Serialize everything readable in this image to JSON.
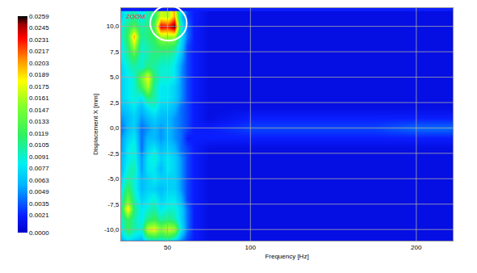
{
  "chart_data": {
    "type": "heatmap",
    "x_label": "Frequency [Hz]",
    "y_label": "Displacement X [mm]",
    "annotations": [
      "ZOOM"
    ],
    "x": [
      22,
      26,
      30,
      34,
      38,
      42,
      46,
      50,
      54,
      58,
      62,
      66,
      75,
      100,
      125,
      150,
      175,
      200,
      220
    ],
    "y": [
      -11,
      -10,
      -9,
      -8,
      -7,
      -6,
      -5,
      -4,
      -3,
      -2,
      -1,
      0,
      1,
      2,
      3,
      4,
      5,
      6,
      7,
      8,
      9,
      10,
      11
    ],
    "z": [
      [
        0.006,
        0.008,
        0.007,
        0.006,
        0.009,
        0.01,
        0.009,
        0.01,
        0.008,
        0.005,
        0.003,
        0.002,
        0.001,
        0.001,
        0.001,
        0.001,
        0.001,
        0.001,
        0.001
      ],
      [
        0.008,
        0.012,
        0.01,
        0.009,
        0.017,
        0.018,
        0.015,
        0.017,
        0.016,
        0.008,
        0.004,
        0.002,
        0.001,
        0.001,
        0.001,
        0.001,
        0.001,
        0.001,
        0.001
      ],
      [
        0.009,
        0.012,
        0.01,
        0.008,
        0.011,
        0.012,
        0.01,
        0.011,
        0.01,
        0.007,
        0.004,
        0.002,
        0.001,
        0.001,
        0.001,
        0.001,
        0.001,
        0.001,
        0.001
      ],
      [
        0.01,
        0.019,
        0.011,
        0.008,
        0.009,
        0.01,
        0.008,
        0.009,
        0.009,
        0.007,
        0.004,
        0.002,
        0.001,
        0.001,
        0.001,
        0.001,
        0.001,
        0.001,
        0.001
      ],
      [
        0.009,
        0.014,
        0.01,
        0.007,
        0.008,
        0.009,
        0.007,
        0.008,
        0.008,
        0.006,
        0.003,
        0.002,
        0.001,
        0.001,
        0.001,
        0.001,
        0.001,
        0.001,
        0.001
      ],
      [
        0.008,
        0.012,
        0.009,
        0.006,
        0.007,
        0.007,
        0.006,
        0.007,
        0.007,
        0.005,
        0.003,
        0.002,
        0.001,
        0.001,
        0.001,
        0.001,
        0.001,
        0.001,
        0.001
      ],
      [
        0.007,
        0.01,
        0.009,
        0.006,
        0.007,
        0.008,
        0.007,
        0.007,
        0.007,
        0.005,
        0.003,
        0.002,
        0.001,
        0.001,
        0.001,
        0.001,
        0.001,
        0.001,
        0.001
      ],
      [
        0.006,
        0.009,
        0.01,
        0.005,
        0.008,
        0.008,
        0.006,
        0.008,
        0.007,
        0.005,
        0.003,
        0.002,
        0.001,
        0.001,
        0.001,
        0.001,
        0.001,
        0.001,
        0.001
      ],
      [
        0.006,
        0.008,
        0.009,
        0.005,
        0.008,
        0.009,
        0.007,
        0.008,
        0.007,
        0.005,
        0.003,
        0.002,
        0.001,
        0.001,
        0.001,
        0.001,
        0.001,
        0.001,
        0.001
      ],
      [
        0.005,
        0.008,
        0.009,
        0.004,
        0.007,
        0.008,
        0.006,
        0.007,
        0.006,
        0.004,
        0.003,
        0.002,
        0.001,
        0.001,
        0.001,
        0.001,
        0.001,
        0.001,
        0.001
      ],
      [
        0.005,
        0.007,
        0.008,
        0.004,
        0.006,
        0.006,
        0.005,
        0.006,
        0.005,
        0.004,
        0.002,
        0.002,
        0.002,
        0.002,
        0.002,
        0.002,
        0.002,
        0.002,
        0.002
      ],
      [
        0.004,
        0.006,
        0.007,
        0.004,
        0.005,
        0.006,
        0.005,
        0.006,
        0.005,
        0.004,
        0.003,
        0.002,
        0.002,
        0.003,
        0.003,
        0.003,
        0.003,
        0.004,
        0.004
      ],
      [
        0.005,
        0.006,
        0.007,
        0.005,
        0.006,
        0.007,
        0.006,
        0.006,
        0.005,
        0.004,
        0.003,
        0.002,
        0.001,
        0.002,
        0.002,
        0.002,
        0.002,
        0.002,
        0.002
      ],
      [
        0.006,
        0.007,
        0.008,
        0.006,
        0.008,
        0.009,
        0.007,
        0.007,
        0.006,
        0.004,
        0.003,
        0.002,
        0.001,
        0.001,
        0.001,
        0.001,
        0.001,
        0.001,
        0.001
      ],
      [
        0.007,
        0.008,
        0.009,
        0.008,
        0.011,
        0.01,
        0.008,
        0.008,
        0.007,
        0.005,
        0.003,
        0.002,
        0.001,
        0.001,
        0.001,
        0.001,
        0.001,
        0.001,
        0.001
      ],
      [
        0.007,
        0.008,
        0.009,
        0.012,
        0.016,
        0.01,
        0.008,
        0.008,
        0.007,
        0.005,
        0.003,
        0.002,
        0.001,
        0.001,
        0.001,
        0.001,
        0.001,
        0.001,
        0.001
      ],
      [
        0.007,
        0.008,
        0.009,
        0.014,
        0.018,
        0.011,
        0.009,
        0.009,
        0.008,
        0.005,
        0.003,
        0.002,
        0.001,
        0.001,
        0.001,
        0.001,
        0.001,
        0.001,
        0.001
      ],
      [
        0.007,
        0.009,
        0.01,
        0.009,
        0.011,
        0.01,
        0.009,
        0.009,
        0.008,
        0.005,
        0.003,
        0.002,
        0.001,
        0.001,
        0.001,
        0.001,
        0.001,
        0.001,
        0.001
      ],
      [
        0.008,
        0.01,
        0.012,
        0.009,
        0.01,
        0.011,
        0.01,
        0.01,
        0.009,
        0.006,
        0.003,
        0.002,
        0.001,
        0.001,
        0.001,
        0.001,
        0.001,
        0.001,
        0.001
      ],
      [
        0.008,
        0.011,
        0.016,
        0.009,
        0.01,
        0.011,
        0.012,
        0.012,
        0.011,
        0.007,
        0.003,
        0.002,
        0.001,
        0.001,
        0.001,
        0.001,
        0.001,
        0.001,
        0.001
      ],
      [
        0.009,
        0.012,
        0.02,
        0.01,
        0.011,
        0.012,
        0.016,
        0.016,
        0.016,
        0.008,
        0.004,
        0.002,
        0.001,
        0.001,
        0.001,
        0.001,
        0.001,
        0.001,
        0.001
      ],
      [
        0.009,
        0.011,
        0.013,
        0.01,
        0.011,
        0.013,
        0.024,
        0.023,
        0.0259,
        0.009,
        0.004,
        0.002,
        0.001,
        0.001,
        0.001,
        0.001,
        0.001,
        0.001,
        0.001
      ],
      [
        0.007,
        0.009,
        0.01,
        0.008,
        0.01,
        0.011,
        0.017,
        0.016,
        0.02,
        0.007,
        0.003,
        0.002,
        0.001,
        0.001,
        0.001,
        0.001,
        0.001,
        0.001,
        0.001
      ]
    ],
    "xlim": [
      22,
      222
    ],
    "ylim": [
      -11.1,
      11.8
    ],
    "xticks": [
      50,
      100,
      200
    ],
    "yticks": [
      {
        "value": -10,
        "label": "-10,0"
      },
      {
        "value": -7.5,
        "label": "-7,5"
      },
      {
        "value": -5,
        "label": "-5,0"
      },
      {
        "value": -2.5,
        "label": "-2,5"
      },
      {
        "value": 0,
        "label": "0,0"
      },
      {
        "value": 2.5,
        "label": "2,5"
      },
      {
        "value": 5,
        "label": "5,0"
      },
      {
        "value": 7.5,
        "label": "7,5"
      },
      {
        "value": 10,
        "label": "10,0"
      }
    ],
    "colorbar": {
      "range": [
        0,
        0.0259
      ],
      "ticks": [
        {
          "value": 0,
          "label": "0.0000"
        },
        0.0021,
        0.0035,
        0.0049,
        0.0063,
        0.0077,
        0.0091,
        0.0105,
        0.0119,
        0.0133,
        0.0147,
        0.0161,
        0.0175,
        0.0189,
        0.0203,
        0.0217,
        0.0231,
        0.0245,
        0.0259
      ]
    },
    "grid": true
  }
}
